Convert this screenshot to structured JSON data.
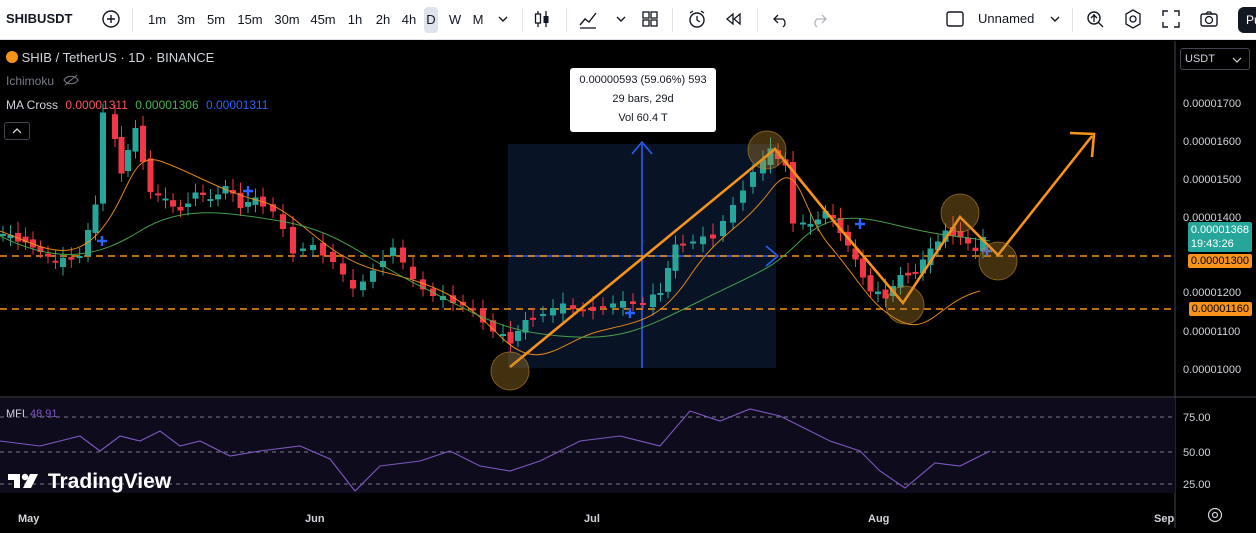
{
  "toolbar": {
    "symbol": "SHIBUSDT",
    "timeframes": [
      "1m",
      "3m",
      "5m",
      "15m",
      "30m",
      "45m",
      "1h",
      "2h",
      "4h",
      "D",
      "W",
      "M"
    ],
    "active_timeframe": "D",
    "layout_name": "Unnamed",
    "publish_label": "Pu"
  },
  "chart": {
    "title": "SHIB / TetherUS · 1D · BINANCE",
    "indicator_ichimoku": "Ichimoku",
    "ma_cross_label": "MA Cross",
    "ma_values": [
      "0.00001311",
      "0.00001306",
      "0.00001311"
    ],
    "ma_colors": [
      "#f7525f",
      "#4caf50",
      "#2962ff"
    ],
    "currency_select": "USDT",
    "tooltip": {
      "line1": "0.00000593 (59.06%) 593",
      "line2": "29 bars, 29d",
      "line3": "Vol 60.4 T"
    },
    "current_price": "0.00001368",
    "countdown": "19:43:26",
    "level_upper": "0.00001300",
    "level_lower": "0.00001160",
    "price_ticks": [
      "0.00001700",
      "0.00001600",
      "0.00001500",
      "0.00001400",
      "0.00001200",
      "0.00001100",
      "0.00001000"
    ],
    "time_ticks": [
      "May",
      "Jun",
      "Jul",
      "Aug",
      "Sep"
    ],
    "mfi_label": "MFI",
    "mfi_value": "48.91",
    "mfi_ticks": [
      "75.00",
      "50.00",
      "25.00"
    ],
    "brand": "TradingView",
    "colors": {
      "up": "#26a69a",
      "down": "#f23645",
      "orange": "#f7931a",
      "blue": "#2962ff",
      "mfi": "#7e57c2"
    }
  },
  "chart_data": {
    "type": "candlestick",
    "title": "SHIB / TetherUS · 1D · BINANCE",
    "ylim": [
      9.5e-06,
      1.79e-05
    ],
    "levels": [
      1.3e-05,
      1.16e-05
    ],
    "mfi_range": [
      0,
      100
    ]
  }
}
